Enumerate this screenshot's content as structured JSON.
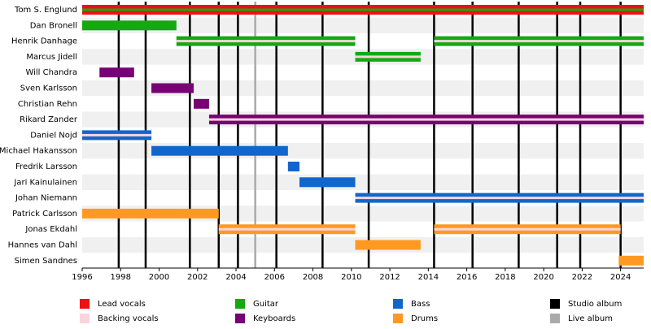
{
  "chart_data": {
    "type": "timeline",
    "roles": [
      {
        "name": "Lead vocals",
        "color": "#ee1111"
      },
      {
        "name": "Backing vocals",
        "color": "#fbd3dc"
      },
      {
        "name": "Guitar",
        "color": "#11aa11"
      },
      {
        "name": "Keyboards",
        "color": "#770077"
      },
      {
        "name": "Bass",
        "color": "#1166cc"
      },
      {
        "name": "Drums",
        "color": "#ff9922"
      },
      {
        "name": "Studio album",
        "color": "#000000"
      },
      {
        "name": "Live album",
        "color": "#aaaaaa"
      }
    ],
    "members": [
      {
        "name": "Tom S. Englund",
        "periods": [
          {
            "start": 1996,
            "end": 2025.2,
            "role": 0,
            "secondary": 2
          }
        ]
      },
      {
        "name": "Dan Bronell",
        "periods": [
          {
            "start": 1996,
            "end": 2000.9,
            "role": 2
          }
        ]
      },
      {
        "name": "Henrik Danhage",
        "periods": [
          {
            "start": 2000.9,
            "end": 2010.2,
            "role": 2,
            "secondary": 1
          },
          {
            "start": 2014.3,
            "end": 2025.2,
            "role": 2,
            "secondary": 1
          }
        ]
      },
      {
        "name": "Marcus Jidell",
        "periods": [
          {
            "start": 2010.2,
            "end": 2013.6,
            "role": 2,
            "secondary": 1
          }
        ]
      },
      {
        "name": "Will Chandra",
        "periods": [
          {
            "start": 1996.9,
            "end": 1998.7,
            "role": 3
          }
        ]
      },
      {
        "name": "Sven Karlsson",
        "periods": [
          {
            "start": 1999.6,
            "end": 2001.8,
            "role": 3
          }
        ]
      },
      {
        "name": "Christian Rehn",
        "periods": [
          {
            "start": 2001.8,
            "end": 2002.6,
            "role": 3
          }
        ]
      },
      {
        "name": "Rikard Zander",
        "periods": [
          {
            "start": 2002.6,
            "end": 2025.2,
            "role": 3,
            "secondary": 1
          }
        ]
      },
      {
        "name": "Daniel Nojd",
        "periods": [
          {
            "start": 1996,
            "end": 1999.6,
            "role": 4,
            "secondary": 1
          }
        ]
      },
      {
        "name": "Michael Hakansson",
        "periods": [
          {
            "start": 1999.6,
            "end": 2006.7,
            "role": 4
          }
        ]
      },
      {
        "name": "Fredrik Larsson",
        "periods": [
          {
            "start": 2006.7,
            "end": 2007.3,
            "role": 4
          }
        ]
      },
      {
        "name": "Jari Kainulainen",
        "periods": [
          {
            "start": 2007.3,
            "end": 2010.2,
            "role": 4
          }
        ]
      },
      {
        "name": "Johan Niemann",
        "periods": [
          {
            "start": 2010.2,
            "end": 2025.2,
            "role": 4,
            "secondary": 1
          }
        ]
      },
      {
        "name": "Patrick Carlsson",
        "periods": [
          {
            "start": 1996,
            "end": 2003.1,
            "role": 5
          }
        ]
      },
      {
        "name": "Jonas Ekdahl",
        "periods": [
          {
            "start": 2003.1,
            "end": 2010.2,
            "role": 5,
            "secondary": 1
          },
          {
            "start": 2014.3,
            "end": 2024.0,
            "role": 5,
            "secondary": 1
          }
        ]
      },
      {
        "name": "Hannes van Dahl",
        "periods": [
          {
            "start": 2010.2,
            "end": 2013.6,
            "role": 5
          }
        ]
      },
      {
        "name": "Simen Sandnes",
        "periods": [
          {
            "start": 2023.9,
            "end": 2025.2,
            "role": 5
          }
        ]
      }
    ],
    "events": [
      {
        "year": 1997.9,
        "role": 6
      },
      {
        "year": 1999.3,
        "role": 6
      },
      {
        "year": 2001.6,
        "role": 6
      },
      {
        "year": 2003.1,
        "role": 6
      },
      {
        "year": 2004.1,
        "role": 6
      },
      {
        "year": 2005.0,
        "role": 7
      },
      {
        "year": 2006.1,
        "role": 6
      },
      {
        "year": 2008.5,
        "role": 6
      },
      {
        "year": 2010.9,
        "role": 6
      },
      {
        "year": 2014.3,
        "role": 6
      },
      {
        "year": 2016.3,
        "role": 6
      },
      {
        "year": 2018.7,
        "role": 6
      },
      {
        "year": 2020.7,
        "role": 6
      },
      {
        "year": 2021.9,
        "role": 6
      },
      {
        "year": 2024.0,
        "role": 6
      }
    ],
    "xlim": [
      1996,
      2025.2
    ],
    "xticks": [
      1996,
      1998,
      2000,
      2002,
      2004,
      2006,
      2008,
      2010,
      2012,
      2014,
      2016,
      2018,
      2020,
      2022,
      2024
    ]
  }
}
